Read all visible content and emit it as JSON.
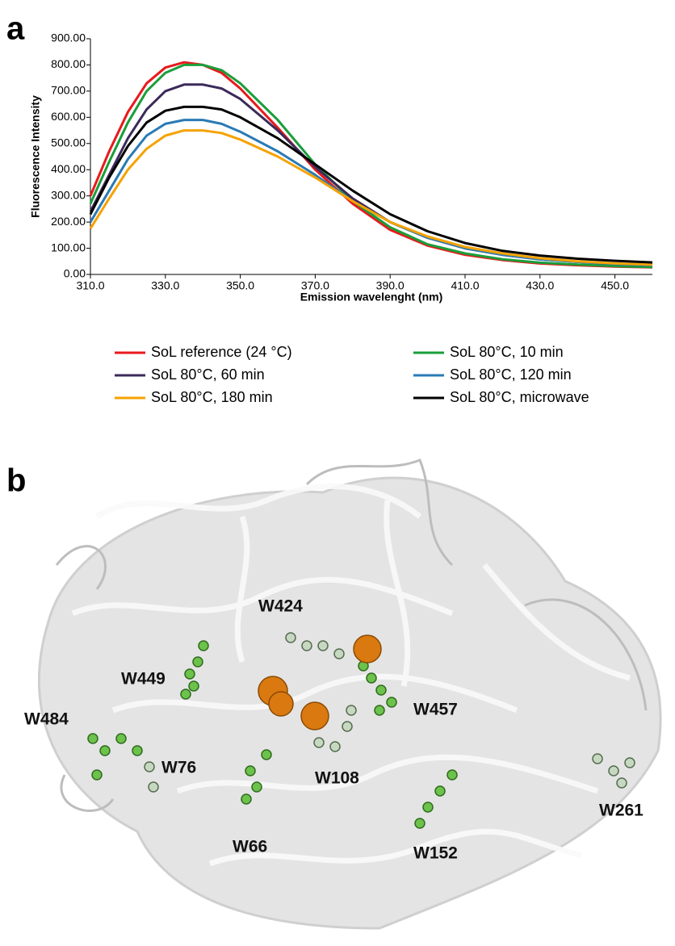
{
  "panel_labels": [
    "a",
    "b"
  ],
  "chart_data": {
    "type": "line",
    "y_label": "Fluorescence  Intensity",
    "x_label": "Emission wavelenght (nm)",
    "x": [
      310,
      315,
      320,
      325,
      330,
      335,
      340,
      345,
      350,
      360,
      370,
      380,
      390,
      400,
      410,
      420,
      430,
      440,
      450,
      460
    ],
    "xlim": [
      310,
      460
    ],
    "ylim": [
      0,
      900
    ],
    "xticks": [
      {
        "value": 310,
        "label": "310.0"
      },
      {
        "value": 330,
        "label": "330.0"
      },
      {
        "value": 350,
        "label": "350.0"
      },
      {
        "value": 370,
        "label": "370.0"
      },
      {
        "value": 390,
        "label": "390.0"
      },
      {
        "value": 410,
        "label": "410.0"
      },
      {
        "value": 430,
        "label": "430.0"
      },
      {
        "value": 450,
        "label": "450.0"
      }
    ],
    "yticks": [
      {
        "value": 0,
        "label": "0.00"
      },
      {
        "value": 100,
        "label": "100.00"
      },
      {
        "value": 200,
        "label": "200.00"
      },
      {
        "value": 300,
        "label": "300.00"
      },
      {
        "value": 400,
        "label": "400.00"
      },
      {
        "value": 500,
        "label": "500.00"
      },
      {
        "value": 600,
        "label": "600.00"
      },
      {
        "value": 700,
        "label": "700.00"
      },
      {
        "value": 800,
        "label": "800.00"
      },
      {
        "value": 900,
        "label": "900.00"
      }
    ],
    "series": [
      {
        "name": "SoL reference (24 °C)",
        "color": "#e8191c",
        "values": [
          300,
          470,
          620,
          730,
          790,
          810,
          800,
          770,
          710,
          560,
          400,
          270,
          170,
          110,
          75,
          55,
          42,
          35,
          30,
          27
        ]
      },
      {
        "name": "SoL 80°C, 10 min",
        "color": "#1a9e3a",
        "values": [
          270,
          430,
          580,
          700,
          770,
          800,
          800,
          780,
          730,
          590,
          420,
          280,
          180,
          115,
          80,
          58,
          45,
          38,
          32,
          28
        ]
      },
      {
        "name": "SoL 80°C, 60 min",
        "color": "#3b2a5a",
        "values": [
          240,
          380,
          520,
          630,
          700,
          725,
          725,
          710,
          670,
          550,
          410,
          290,
          200,
          140,
          100,
          75,
          58,
          48,
          40,
          35
        ]
      },
      {
        "name": " SoL 80°C, 120 min",
        "color": "#2a7ab5",
        "values": [
          200,
          320,
          440,
          530,
          575,
          590,
          590,
          575,
          545,
          470,
          380,
          280,
          200,
          140,
          100,
          75,
          58,
          48,
          40,
          35
        ]
      },
      {
        "name": "SoL 80°C, 180 min",
        "color": "#f5a200",
        "values": [
          175,
          290,
          400,
          480,
          530,
          550,
          550,
          540,
          515,
          450,
          370,
          280,
          200,
          145,
          105,
          80,
          62,
          50,
          42,
          37
        ]
      },
      {
        "name": "SoL 80°C, microwave",
        "color": "#000000",
        "values": [
          230,
          370,
          490,
          580,
          625,
          640,
          640,
          630,
          600,
          520,
          420,
          320,
          230,
          165,
          120,
          90,
          72,
          60,
          52,
          46
        ]
      }
    ]
  },
  "structure": {
    "residues": [
      "W424",
      "W449",
      "W457",
      "W484",
      "W76",
      "W108",
      "W66",
      "W152",
      "W261"
    ]
  }
}
